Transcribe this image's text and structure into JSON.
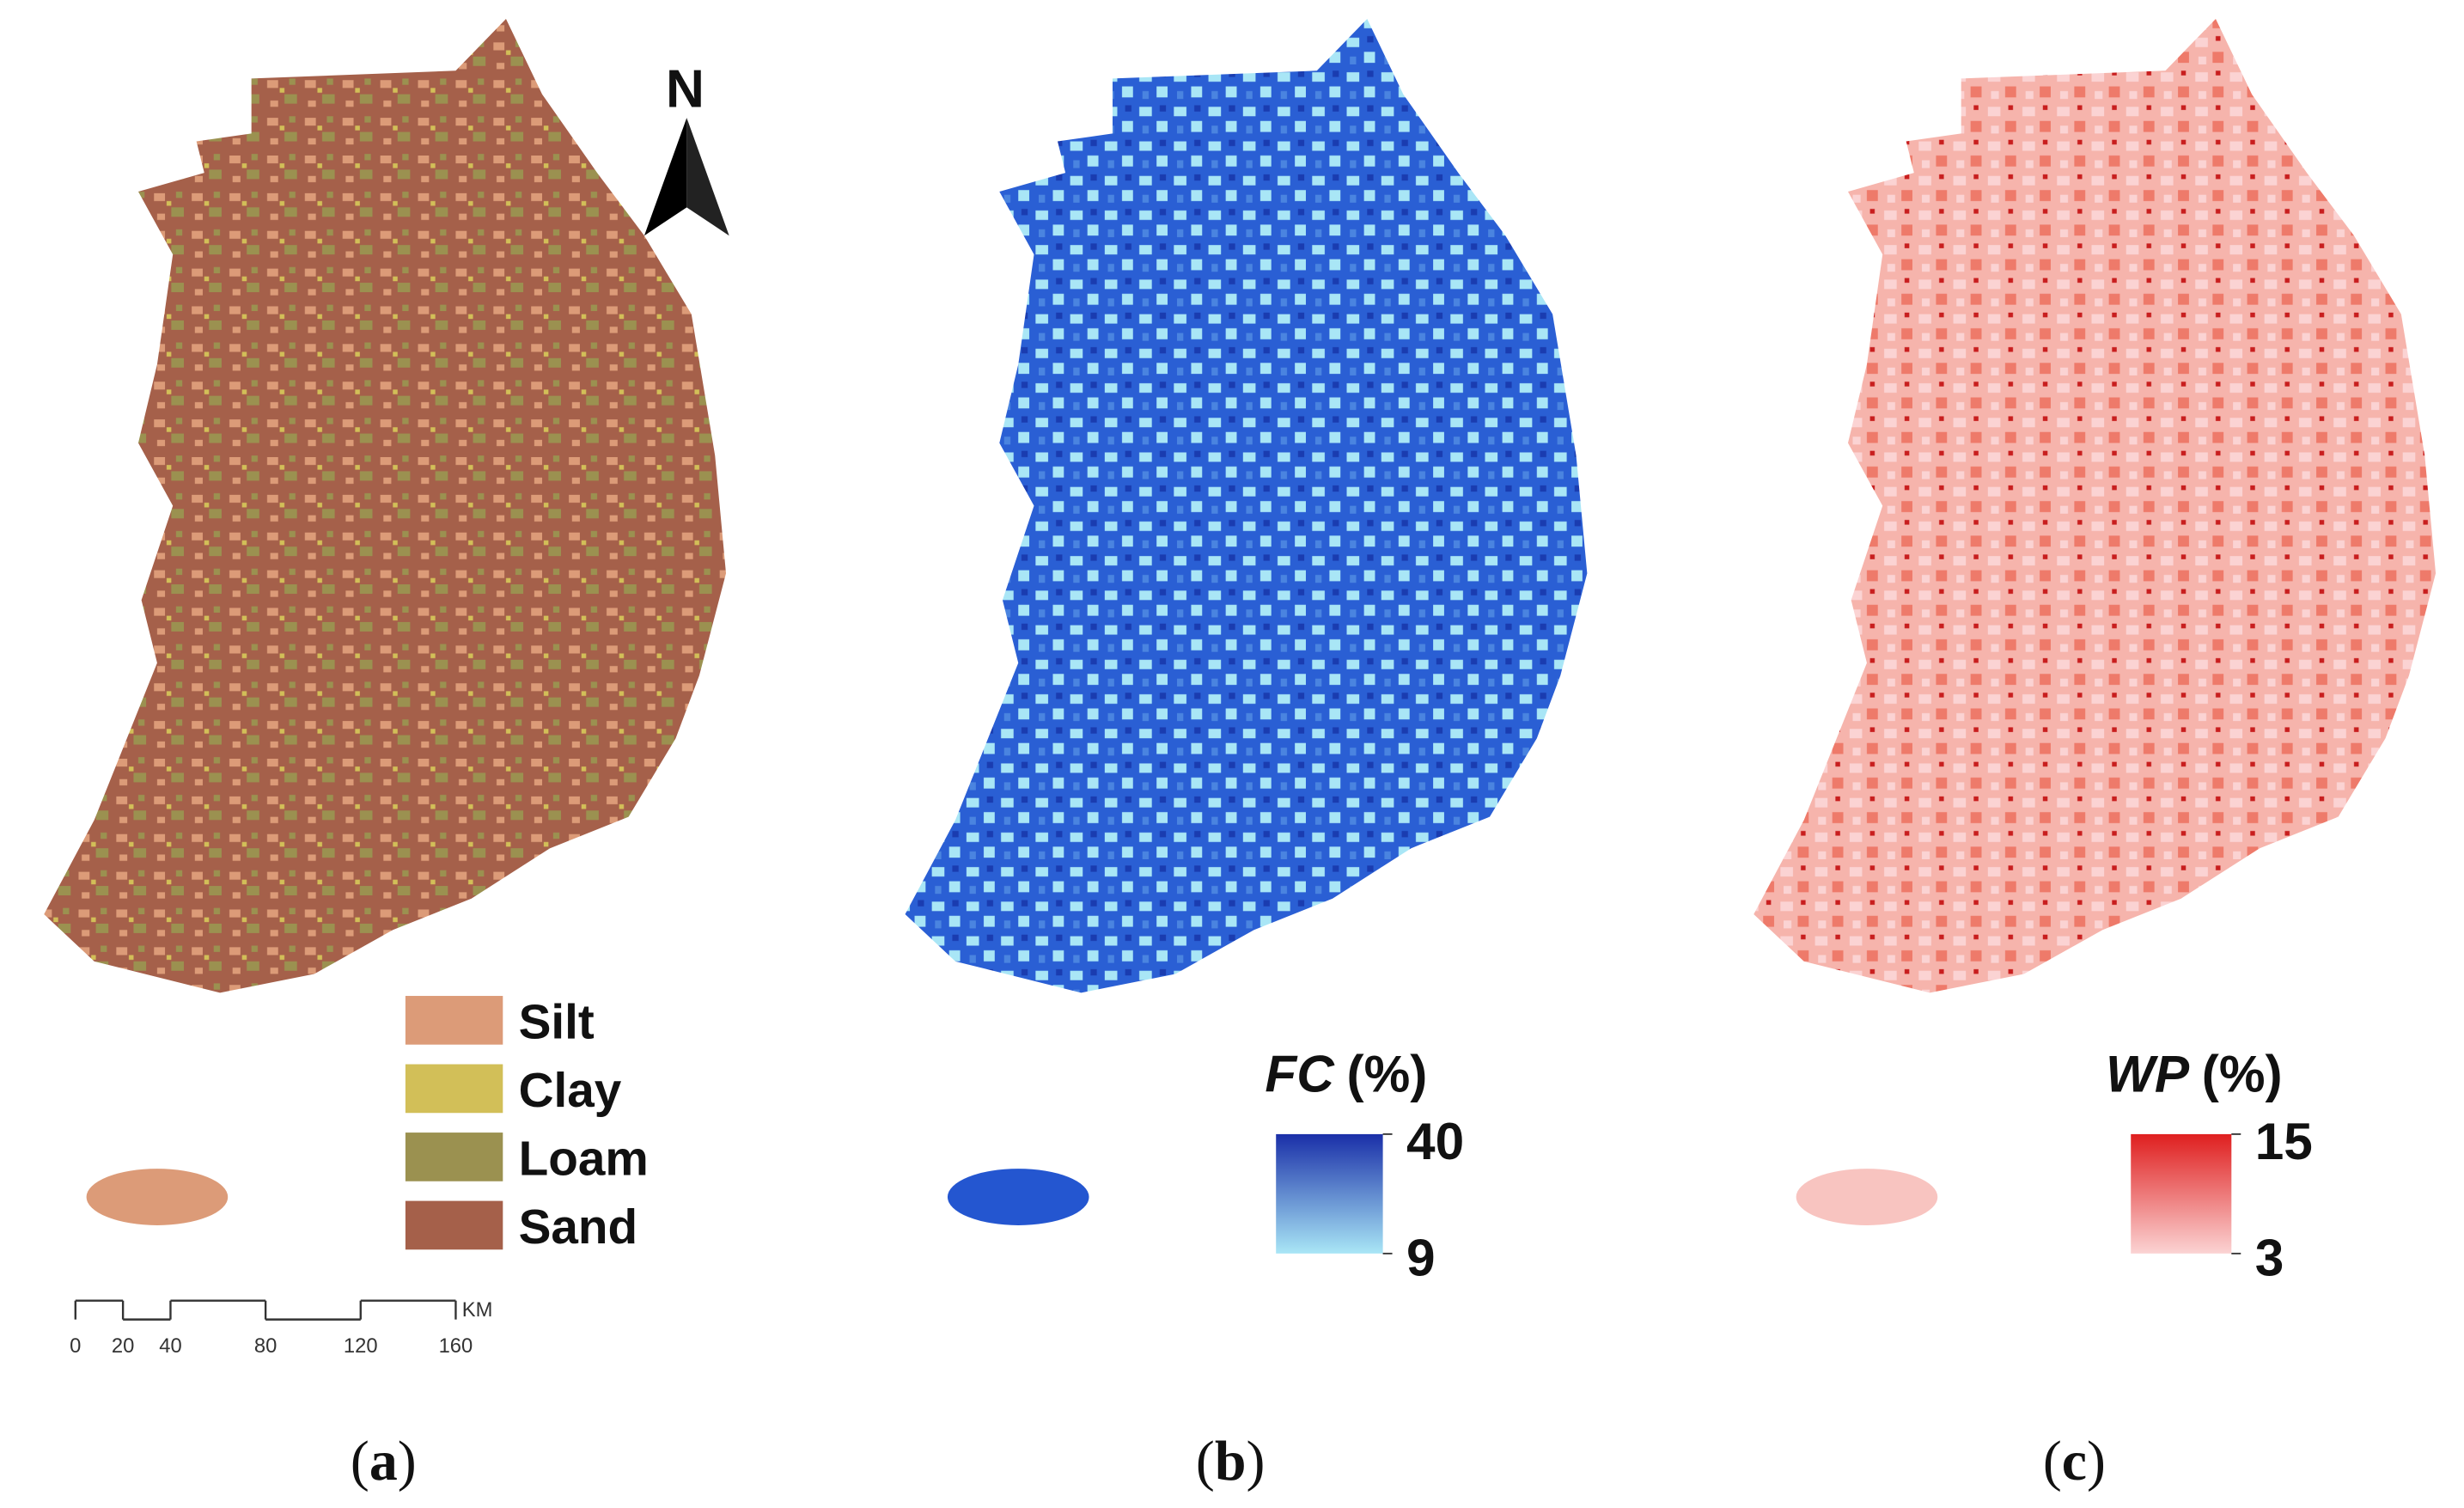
{
  "north_arrow": "N",
  "panels": [
    {
      "caption": [
        "(",
        "a",
        ")"
      ],
      "legend": [
        {
          "label": "Silt",
          "color": "#dc9b78"
        },
        {
          "label": "Clay",
          "color": "#d2bf58"
        },
        {
          "label": "Loam",
          "color": "#9b9150"
        },
        {
          "label": "Sand",
          "color": "#a5604a"
        }
      ],
      "scale_bar": {
        "ticks": [
          0,
          20,
          40,
          80,
          120,
          160
        ],
        "unit": "KM"
      }
    },
    {
      "caption": [
        "(",
        "b",
        ")"
      ],
      "colorbar": {
        "title": "FC",
        "unit": "(%)",
        "max": 40,
        "min": 9,
        "colors": [
          "#1a2fa8",
          "#a9e6f6"
        ]
      }
    },
    {
      "caption": [
        "(",
        "c",
        ")"
      ],
      "colorbar": {
        "title": "WP",
        "unit": "(%)",
        "max": 15,
        "min": 3,
        "colors": [
          "#df1f1f",
          "#fbd3d3"
        ]
      }
    }
  ]
}
